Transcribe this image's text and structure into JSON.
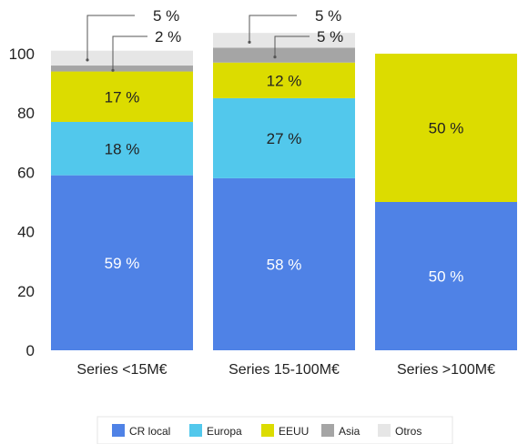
{
  "chart_data": {
    "type": "bar",
    "stacked": true,
    "categories": [
      "Series <15M€",
      "Series 15-100M€",
      "Series >100M€"
    ],
    "ylim": [
      0,
      100
    ],
    "yticks": [
      "0",
      "20",
      "40",
      "60",
      "80",
      "100"
    ],
    "series": [
      {
        "name": "CR local",
        "color": "#4f82e6",
        "values": [
          59,
          58,
          50
        ],
        "labels": [
          "59 %",
          "58 %",
          "50 %"
        ],
        "label_color": "#ffffff"
      },
      {
        "name": "Europa",
        "color": "#52c8ec",
        "values": [
          18,
          27,
          0
        ],
        "labels": [
          "18 %",
          "27 %",
          ""
        ],
        "label_color": "#222222"
      },
      {
        "name": "EEUU",
        "color": "#dcdc00",
        "values": [
          17,
          12,
          50
        ],
        "labels": [
          "17 %",
          "12 %",
          "50 %"
        ],
        "label_color": "#222222"
      },
      {
        "name": "Asia",
        "color": "#a5a5a5",
        "values": [
          2,
          5,
          0
        ],
        "labels": [
          "2 %",
          "5 %",
          ""
        ],
        "label_color": "#222222"
      },
      {
        "name": "Otros",
        "color": "#e6e6e6",
        "values": [
          5,
          5,
          0
        ],
        "labels": [
          "5 %",
          "5 %",
          ""
        ],
        "label_color": "#222222"
      }
    ],
    "callouts": [
      {
        "category": 0,
        "series": 4,
        "text": "5 %"
      },
      {
        "category": 0,
        "series": 3,
        "text": "2 %"
      },
      {
        "category": 1,
        "series": 4,
        "text": "5 %"
      },
      {
        "category": 1,
        "series": 3,
        "text": "5 %"
      }
    ],
    "legend_position": "bottom",
    "grid": false
  }
}
